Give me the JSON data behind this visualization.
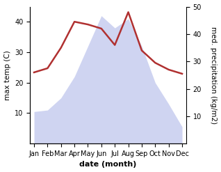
{
  "months": [
    "Jan",
    "Feb",
    "Mar",
    "Apr",
    "May",
    "Jun",
    "Jul",
    "Aug",
    "Sep",
    "Oct",
    "Nov",
    "Dec"
  ],
  "temperature": [
    10.5,
    11.0,
    15.0,
    22.0,
    32.0,
    42.0,
    38.0,
    41.0,
    32.0,
    20.0,
    13.0,
    5.5
  ],
  "precipitation": [
    26.0,
    27.5,
    35.0,
    44.5,
    43.5,
    42.0,
    36.0,
    48.0,
    34.0,
    29.5,
    27.0,
    25.5
  ],
  "fill_color": "#b0b8e8",
  "fill_alpha": 0.6,
  "precip_line_color": "#b03030",
  "temp_ylim": [
    0,
    45
  ],
  "temp_yticks": [
    10,
    20,
    30,
    40
  ],
  "precip_ylim": [
    0,
    50
  ],
  "precip_yticks": [
    10,
    20,
    30,
    40,
    50
  ],
  "xlabel": "date (month)",
  "ylabel_left": "max temp (C)",
  "ylabel_right": "med. precipitation (kg/m2)",
  "bg_color": "#ffffff",
  "line_width": 1.8,
  "tick_fontsize": 7,
  "label_fontsize": 7.5,
  "xlabel_fontsize": 8
}
